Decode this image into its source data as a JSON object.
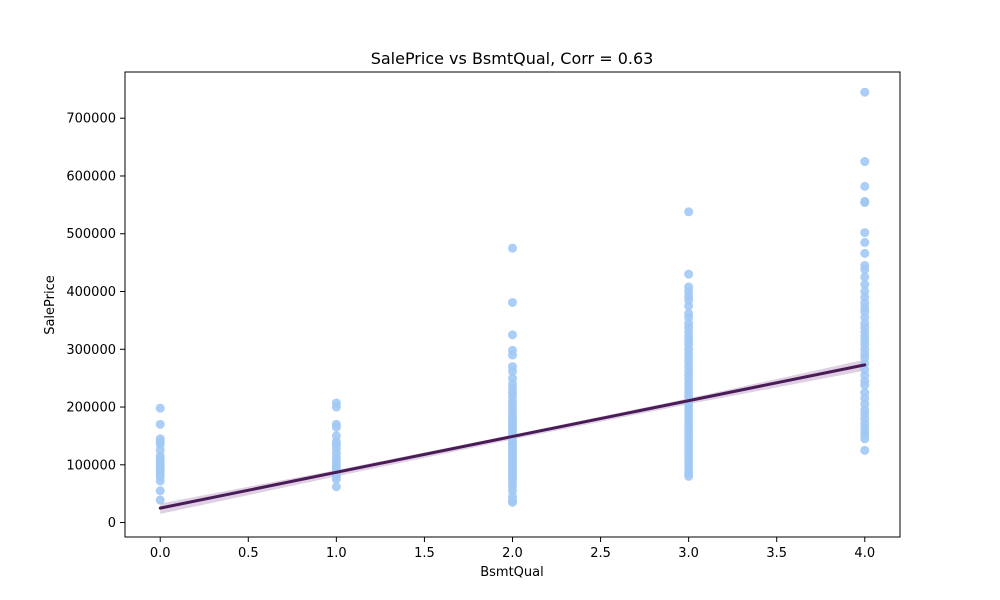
{
  "chart_data": {
    "type": "scatter",
    "title": "SalePrice vs BsmtQual, Corr = 0.63",
    "xlabel": "BsmtQual",
    "ylabel": "SalePrice",
    "xlim": [
      -0.2,
      4.2
    ],
    "ylim": [
      -25000,
      780000
    ],
    "x_ticks": [
      0.0,
      0.5,
      1.0,
      1.5,
      2.0,
      2.5,
      3.0,
      3.5,
      4.0
    ],
    "x_tick_labels": [
      "0.0",
      "0.5",
      "1.0",
      "1.5",
      "2.0",
      "2.5",
      "3.0",
      "3.5",
      "4.0"
    ],
    "y_ticks": [
      0,
      100000,
      200000,
      300000,
      400000,
      500000,
      600000,
      700000
    ],
    "y_tick_labels": [
      "0",
      "100000",
      "200000",
      "300000",
      "400000",
      "500000",
      "600000",
      "700000"
    ],
    "grid": false,
    "colors": {
      "points": "#a1c9f4",
      "regression_line": "#4a1c57",
      "confidence_band": "#d9c8de"
    },
    "series": [
      {
        "kind": "scatter",
        "points": [
          [
            0,
            198000
          ],
          [
            0,
            170000
          ],
          [
            0,
            145000
          ],
          [
            0,
            140000
          ],
          [
            0,
            135000
          ],
          [
            0,
            125000
          ],
          [
            0,
            115000
          ],
          [
            0,
            110000
          ],
          [
            0,
            105000
          ],
          [
            0,
            100000
          ],
          [
            0,
            95000
          ],
          [
            0,
            90000
          ],
          [
            0,
            85000
          ],
          [
            0,
            80000
          ],
          [
            0,
            72000
          ],
          [
            0,
            55000
          ],
          [
            0,
            39000
          ],
          [
            1,
            207000
          ],
          [
            1,
            200000
          ],
          [
            1,
            170000
          ],
          [
            1,
            165000
          ],
          [
            1,
            150000
          ],
          [
            1,
            140000
          ],
          [
            1,
            135000
          ],
          [
            1,
            128000
          ],
          [
            1,
            120000
          ],
          [
            1,
            112000
          ],
          [
            1,
            105000
          ],
          [
            1,
            100000
          ],
          [
            1,
            95000
          ],
          [
            1,
            90000
          ],
          [
            1,
            85000
          ],
          [
            1,
            80000
          ],
          [
            1,
            75000
          ],
          [
            1,
            62000
          ],
          [
            2,
            475000
          ],
          [
            2,
            381000
          ],
          [
            2,
            325000
          ],
          [
            2,
            298000
          ],
          [
            2,
            290000
          ],
          [
            2,
            270000
          ],
          [
            2,
            262000
          ],
          [
            2,
            250000
          ],
          [
            2,
            240000
          ],
          [
            2,
            232000
          ],
          [
            2,
            225000
          ],
          [
            2,
            218000
          ],
          [
            2,
            210000
          ],
          [
            2,
            204000
          ],
          [
            2,
            198000
          ],
          [
            2,
            192000
          ],
          [
            2,
            186000
          ],
          [
            2,
            180000
          ],
          [
            2,
            175000
          ],
          [
            2,
            170000
          ],
          [
            2,
            165000
          ],
          [
            2,
            160000
          ],
          [
            2,
            155000
          ],
          [
            2,
            150000
          ],
          [
            2,
            145000
          ],
          [
            2,
            140000
          ],
          [
            2,
            135000
          ],
          [
            2,
            130000
          ],
          [
            2,
            125000
          ],
          [
            2,
            120000
          ],
          [
            2,
            115000
          ],
          [
            2,
            110000
          ],
          [
            2,
            105000
          ],
          [
            2,
            100000
          ],
          [
            2,
            95000
          ],
          [
            2,
            90000
          ],
          [
            2,
            85000
          ],
          [
            2,
            80000
          ],
          [
            2,
            75000
          ],
          [
            2,
            68000
          ],
          [
            2,
            62000
          ],
          [
            2,
            55000
          ],
          [
            2,
            45000
          ],
          [
            2,
            38000
          ],
          [
            2,
            35000
          ],
          [
            3,
            538000
          ],
          [
            3,
            430000
          ],
          [
            3,
            408000
          ],
          [
            3,
            400000
          ],
          [
            3,
            392000
          ],
          [
            3,
            385000
          ],
          [
            3,
            375000
          ],
          [
            3,
            362000
          ],
          [
            3,
            355000
          ],
          [
            3,
            345000
          ],
          [
            3,
            338000
          ],
          [
            3,
            330000
          ],
          [
            3,
            322000
          ],
          [
            3,
            315000
          ],
          [
            3,
            308000
          ],
          [
            3,
            300000
          ],
          [
            3,
            292000
          ],
          [
            3,
            285000
          ],
          [
            3,
            278000
          ],
          [
            3,
            270000
          ],
          [
            3,
            262000
          ],
          [
            3,
            255000
          ],
          [
            3,
            248000
          ],
          [
            3,
            240000
          ],
          [
            3,
            232000
          ],
          [
            3,
            225000
          ],
          [
            3,
            218000
          ],
          [
            3,
            210000
          ],
          [
            3,
            203000
          ],
          [
            3,
            196000
          ],
          [
            3,
            189000
          ],
          [
            3,
            182000
          ],
          [
            3,
            175000
          ],
          [
            3,
            168000
          ],
          [
            3,
            161000
          ],
          [
            3,
            154000
          ],
          [
            3,
            147000
          ],
          [
            3,
            140000
          ],
          [
            3,
            133000
          ],
          [
            3,
            126000
          ],
          [
            3,
            119000
          ],
          [
            3,
            112000
          ],
          [
            3,
            105000
          ],
          [
            3,
            98000
          ],
          [
            3,
            91000
          ],
          [
            3,
            85000
          ],
          [
            3,
            80000
          ],
          [
            4,
            745000
          ],
          [
            4,
            625000
          ],
          [
            4,
            582000
          ],
          [
            4,
            556000
          ],
          [
            4,
            554000
          ],
          [
            4,
            502000
          ],
          [
            4,
            485000
          ],
          [
            4,
            466000
          ],
          [
            4,
            445000
          ],
          [
            4,
            438000
          ],
          [
            4,
            425000
          ],
          [
            4,
            412000
          ],
          [
            4,
            400000
          ],
          [
            4,
            390000
          ],
          [
            4,
            380000
          ],
          [
            4,
            372000
          ],
          [
            4,
            365000
          ],
          [
            4,
            355000
          ],
          [
            4,
            345000
          ],
          [
            4,
            338000
          ],
          [
            4,
            330000
          ],
          [
            4,
            322000
          ],
          [
            4,
            315000
          ],
          [
            4,
            308000
          ],
          [
            4,
            300000
          ],
          [
            4,
            292000
          ],
          [
            4,
            285000
          ],
          [
            4,
            275000
          ],
          [
            4,
            265000
          ],
          [
            4,
            255000
          ],
          [
            4,
            245000
          ],
          [
            4,
            238000
          ],
          [
            4,
            225000
          ],
          [
            4,
            215000
          ],
          [
            4,
            205000
          ],
          [
            4,
            195000
          ],
          [
            4,
            188000
          ],
          [
            4,
            180000
          ],
          [
            4,
            172000
          ],
          [
            4,
            165000
          ],
          [
            4,
            158000
          ],
          [
            4,
            152000
          ],
          [
            4,
            145000
          ],
          [
            4,
            125000
          ]
        ]
      },
      {
        "kind": "regression_line",
        "points": [
          [
            0,
            25000
          ],
          [
            4,
            273000
          ]
        ],
        "confidence_band": {
          "upper": [
            [
              0,
              33000
            ],
            [
              1,
              91000
            ],
            [
              2,
              152000
            ],
            [
              3,
              215000
            ],
            [
              4,
              282000
            ]
          ],
          "lower": [
            [
              0,
              15000
            ],
            [
              1,
              80000
            ],
            [
              2,
              144000
            ],
            [
              3,
              205000
            ],
            [
              4,
              263000
            ]
          ]
        }
      }
    ]
  }
}
